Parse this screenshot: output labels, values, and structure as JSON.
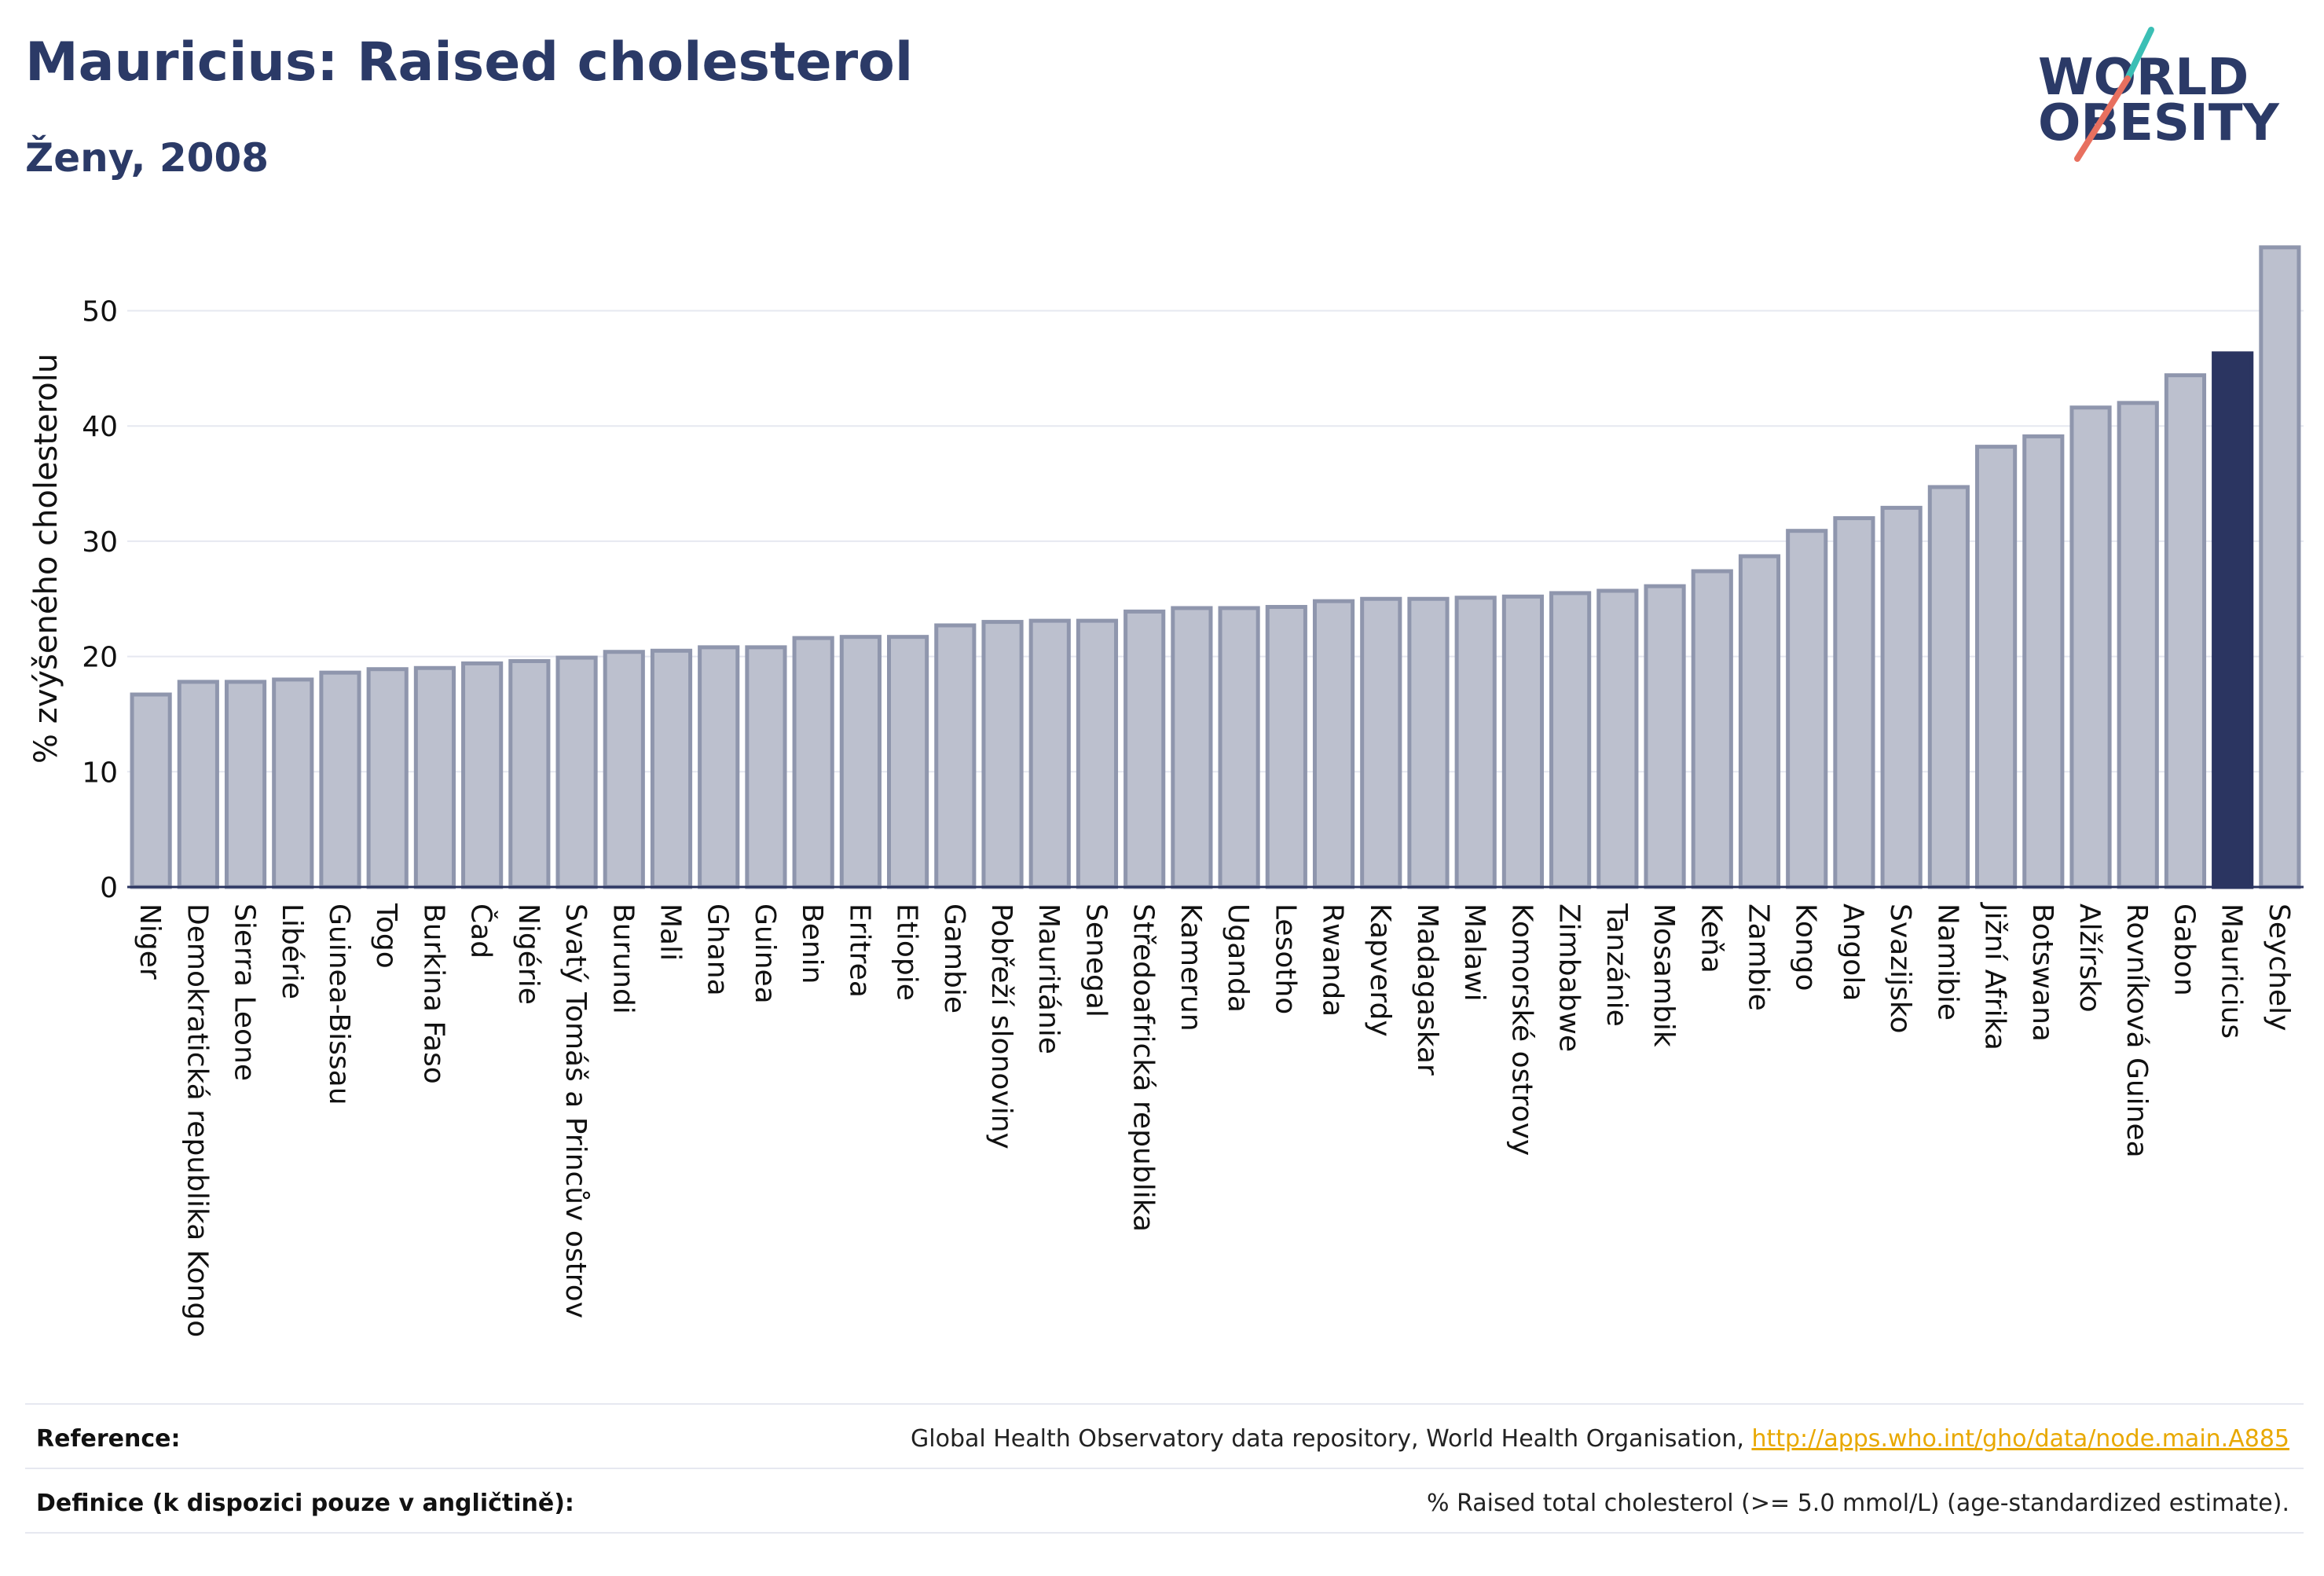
{
  "header": {
    "title": "Mauricius: Raised cholesterol",
    "subtitle": "Ženy, 2008",
    "logo_line1": "WORLD",
    "logo_line2": "OBESITY"
  },
  "colors": {
    "bar": "#bcc0ce",
    "bar_stroke": "#8f96ad",
    "highlight": "#2b3561",
    "title": "#2b3a67",
    "link": "#e8a800",
    "logo_teal": "#3bbfb5",
    "logo_coral": "#e8705f"
  },
  "chart_data": {
    "type": "bar",
    "ylabel": "% zvýšeného cholesterolu",
    "xlabel": "",
    "ylim": [
      0,
      57
    ],
    "yticks": [
      0,
      10,
      20,
      30,
      40,
      50
    ],
    "grid": true,
    "highlight": "Mauricius",
    "categories": [
      "Niger",
      "Demokratická republika Kongo",
      "Sierra Leone",
      "Libérie",
      "Guinea-Bissau",
      "Togo",
      "Burkina Faso",
      "Čad",
      "Nigérie",
      "Svatý Tomáš a Princův ostrov",
      "Burundi",
      "Mali",
      "Ghana",
      "Guinea",
      "Benin",
      "Eritrea",
      "Etiopie",
      "Gambie",
      "Pobřeží slonoviny",
      "Mauritánie",
      "Senegal",
      "Středoafrická republika",
      "Kamerun",
      "Uganda",
      "Lesotho",
      "Rwanda",
      "Kapverdy",
      "Madagaskar",
      "Malawi",
      "Komorské ostrovy",
      "Zimbabwe",
      "Tanzánie",
      "Mosambik",
      "Keňa",
      "Zambie",
      "Kongo",
      "Angola",
      "Svazijsko",
      "Namibie",
      "Jižní Afrika",
      "Botswana",
      "Alžírsko",
      "Rovníková Guinea",
      "Gabon",
      "Mauricius",
      "Seychely"
    ],
    "values": [
      16.7,
      17.8,
      17.8,
      18.0,
      18.6,
      18.9,
      19.0,
      19.4,
      19.6,
      19.9,
      20.4,
      20.5,
      20.8,
      20.8,
      21.6,
      21.7,
      21.7,
      22.7,
      23.0,
      23.1,
      23.1,
      23.9,
      24.2,
      24.2,
      24.3,
      24.8,
      25.0,
      25.0,
      25.1,
      25.2,
      25.5,
      25.7,
      26.1,
      27.4,
      28.7,
      30.9,
      32.0,
      32.9,
      34.7,
      38.2,
      39.1,
      41.6,
      42.0,
      44.4,
      46.3,
      55.5
    ]
  },
  "footer": {
    "reference_label": "Reference:",
    "reference_text": "Global Health Observatory data repository, World Health Organisation, ",
    "reference_link": "http://apps.who.int/gho/data/node.main.A885",
    "definition_label": "Definice (k dispozici pouze v angličtině):",
    "definition_text": "% Raised total cholesterol (>= 5.0 mmol/L) (age-standardized estimate)."
  }
}
